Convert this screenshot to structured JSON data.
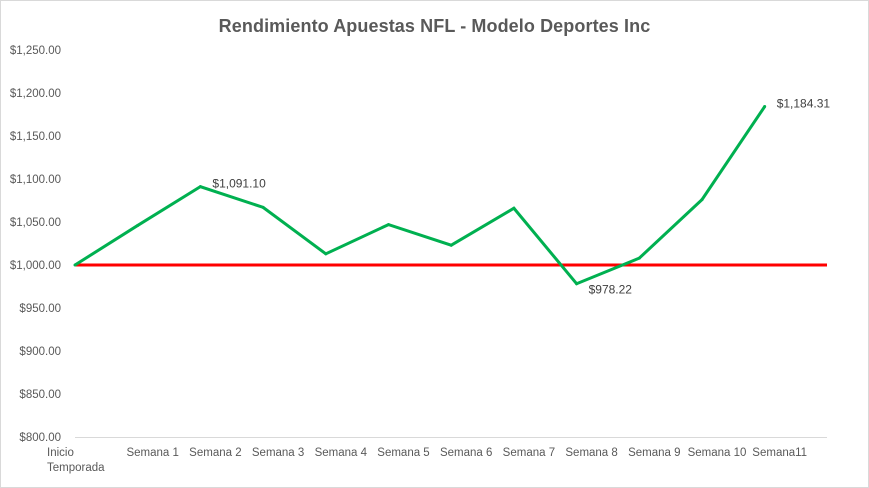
{
  "chart_data": {
    "type": "line",
    "title": "Rendimiento Apuestas NFL - Modelo Deportes  Inc",
    "categories": [
      [
        "Inicio",
        "Temporada"
      ],
      [
        "Semana 1"
      ],
      [
        "Semana 2"
      ],
      [
        "Semana 3"
      ],
      [
        "Semana 4"
      ],
      [
        "Semana 5"
      ],
      [
        "Semana 6"
      ],
      [
        "Semana 7"
      ],
      [
        "Semana 8"
      ],
      [
        "Semana 9"
      ],
      [
        "Semana 10"
      ],
      [
        "Semana11"
      ]
    ],
    "series": [
      {
        "color": "#00b050",
        "values": [
          1000.0,
          1046.0,
          1091.1,
          1067.0,
          1013.0,
          1047.0,
          1023.0,
          1066.0,
          978.22,
          1008.0,
          1076.0,
          1184.31
        ]
      }
    ],
    "data_labels": [
      {
        "index": 2,
        "text": "$1,091.10",
        "position": "right"
      },
      {
        "index": 8,
        "text": "$978.22",
        "position": "below-right"
      },
      {
        "index": 11,
        "text": "$1,184.31",
        "position": "right"
      }
    ],
    "reference_line": {
      "value": 1000.0,
      "color": "#ff0000"
    },
    "ylim": [
      800,
      1250
    ],
    "yticks": [
      {
        "value": 800,
        "label": "$800.00"
      },
      {
        "value": 850,
        "label": "$850.00"
      },
      {
        "value": 900,
        "label": "$900.00"
      },
      {
        "value": 950,
        "label": "$950.00"
      },
      {
        "value": 1000,
        "label": "$1,000.00"
      },
      {
        "value": 1050,
        "label": "$1,050.00"
      },
      {
        "value": 1100,
        "label": "$1,100.00"
      },
      {
        "value": 1150,
        "label": "$1,150.00"
      },
      {
        "value": 1200,
        "label": "$1,200.00"
      },
      {
        "value": 1250,
        "label": "$1,250.00"
      }
    ],
    "xlabel": "",
    "ylabel": "",
    "grid": false,
    "legend": "none"
  }
}
